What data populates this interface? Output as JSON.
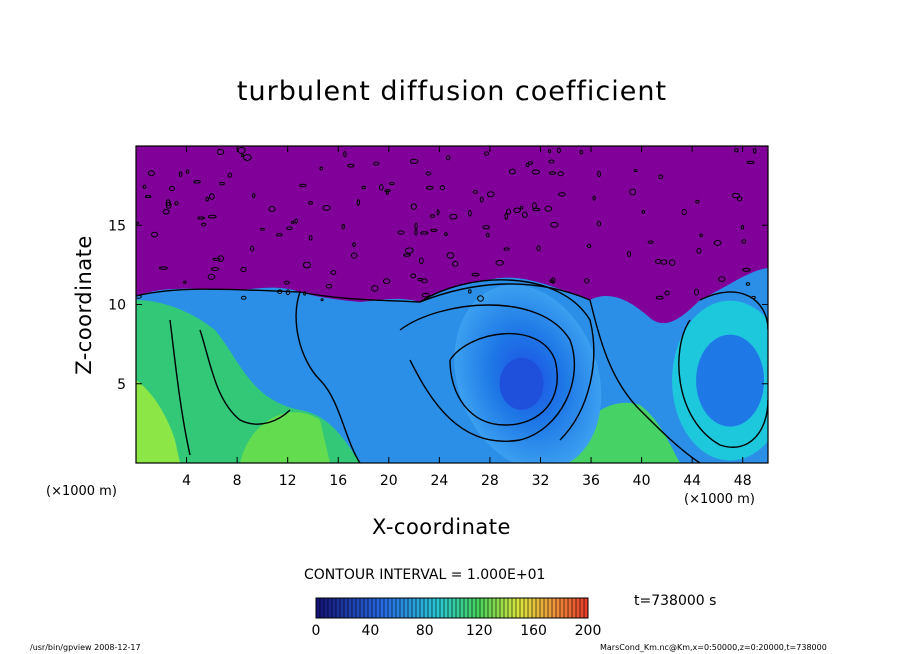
{
  "chart_data": {
    "type": "heatmap",
    "title": "turbulent diffusion coefficient",
    "xlabel": "X-coordinate",
    "ylabel": "Z-coordinate",
    "x_unit": "(×1000 m)",
    "xlim": [
      0,
      50
    ],
    "ylim": [
      0,
      20
    ],
    "x_ticks": [
      4,
      8,
      12,
      16,
      20,
      24,
      28,
      32,
      36,
      40,
      44,
      48
    ],
    "y_ticks": [
      5,
      10,
      15
    ],
    "contour_interval": "CONTOUR INTERVAL = 1.000E+01",
    "colorbar": {
      "min": 0,
      "max": 200,
      "ticks": [
        0,
        40,
        80,
        120,
        160,
        200
      ]
    },
    "time_label": "t=738000 s",
    "colors": {
      "upper_region": "#800099",
      "background": "#ffffff"
    }
  },
  "footer": {
    "left": "/usr/bin/gpview  2008-12-17",
    "right": "MarsCond_Km.nc@Km,x=0:50000,z=0:20000,t=738000"
  }
}
